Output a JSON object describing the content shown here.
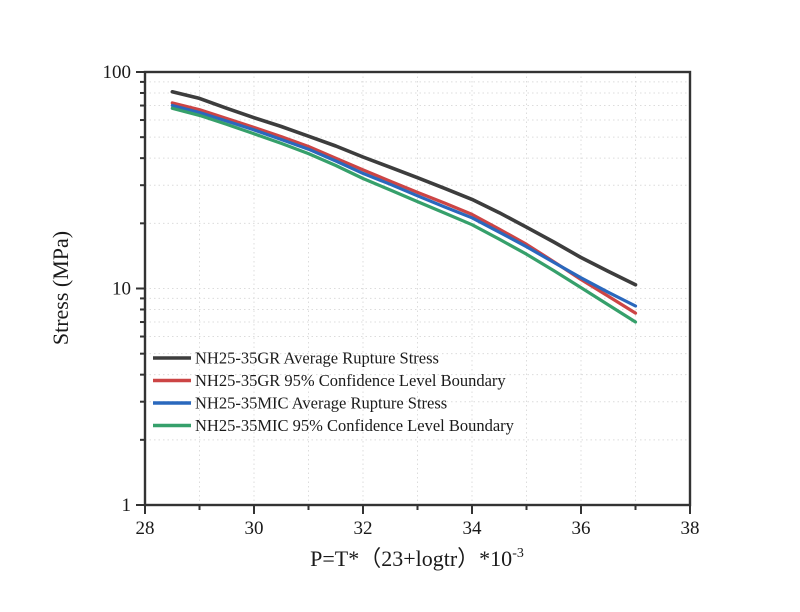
{
  "figure": {
    "background": "#ffffff",
    "frame_color": "#333333",
    "grid_color": "#dcdcdc",
    "text_color": "#1a1a1a"
  },
  "chart_data": {
    "type": "line",
    "title": "",
    "xlabel": "P=T*（23+logtr）*10",
    "xlabel_superscript": "-3",
    "ylabel": "Stress (MPa)",
    "x_axis": {
      "scale": "linear",
      "min": 28,
      "max": 38,
      "major_ticks": [
        28,
        30,
        32,
        34,
        36,
        38
      ],
      "major_tick_labels": [
        "28",
        "30",
        "32",
        "34",
        "36",
        "38"
      ],
      "minor_ticks": [
        29,
        31,
        33,
        35,
        37
      ]
    },
    "y_axis": {
      "scale": "log",
      "min": 1,
      "max": 100,
      "major_ticks": [
        1,
        10,
        100
      ],
      "major_tick_labels": [
        "1",
        "10",
        "100"
      ],
      "minor_ticks": [
        2,
        3,
        4,
        5,
        6,
        7,
        8,
        9,
        20,
        30,
        40,
        50,
        60,
        70,
        80,
        90
      ]
    },
    "grid": {
      "style": "dotted",
      "vertical_at": [
        29,
        30,
        31,
        32,
        33,
        34,
        35,
        36,
        37
      ],
      "horizontal_at": [
        2,
        3,
        4,
        5,
        6,
        7,
        8,
        9,
        10,
        20,
        30,
        40,
        50,
        60,
        70,
        80,
        90
      ]
    },
    "legend_position": "inside lower-left",
    "x": [
      28.5,
      29,
      29.5,
      30,
      30.5,
      31,
      31.5,
      32,
      32.5,
      33,
      33.5,
      34,
      34.5,
      35,
      35.5,
      36,
      36.5,
      37
    ],
    "series": [
      {
        "name": "NH25-35GR Average Rupture Stress",
        "color": "#3d3d3d",
        "width": 3.6,
        "values": [
          81,
          75.5,
          68,
          61.5,
          56,
          50.5,
          45.5,
          40.5,
          36.3,
          32.5,
          29,
          25.8,
          22.4,
          19.2,
          16.4,
          13.9,
          12.0,
          10.4
        ]
      },
      {
        "name": "NH25-35GR 95% Confidence Level Boundary",
        "color": "#cc4545",
        "width": 3.2,
        "values": [
          72,
          67,
          61,
          55.5,
          50.3,
          45.3,
          40,
          35.3,
          31.3,
          27.8,
          24.8,
          22.0,
          18.8,
          16.0,
          13.3,
          11.0,
          9.2,
          7.7
        ]
      },
      {
        "name": "NH25-35MIC Average Rupture Stress",
        "color": "#2a68bd",
        "width": 3.2,
        "values": [
          70,
          65,
          59.3,
          54,
          48.8,
          44,
          38.8,
          34,
          30.3,
          26.8,
          23.8,
          21.2,
          18.2,
          15.6,
          13.2,
          11.2,
          9.6,
          8.3
        ]
      },
      {
        "name": "NH25-35MIC 95% Confidence Level Boundary",
        "color": "#36a06b",
        "width": 3.2,
        "values": [
          68,
          63,
          57.3,
          51.8,
          46.8,
          42,
          37,
          32.2,
          28.5,
          25.2,
          22.3,
          19.7,
          16.9,
          14.4,
          12.1,
          10.1,
          8.4,
          7.0
        ]
      }
    ]
  }
}
